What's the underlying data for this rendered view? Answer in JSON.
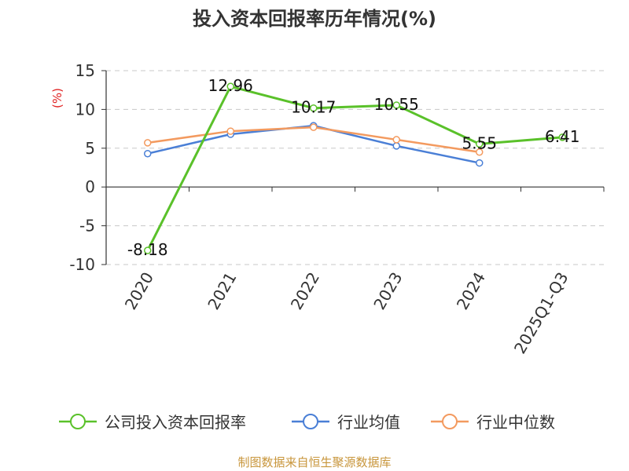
{
  "chart_data": {
    "type": "line",
    "title": "投入资本回报率历年情况(%)",
    "unit_label": "(%)",
    "categories": [
      "2020",
      "2021",
      "2022",
      "2023",
      "2024",
      "2025Q1-Q3"
    ],
    "ylim": [
      -10,
      15
    ],
    "yticks": [
      15,
      10,
      5,
      0,
      -5,
      -10
    ],
    "grid": true,
    "legend_position": "bottom",
    "series": [
      {
        "name": "公司投入资本回报率",
        "color": "#5ac12a",
        "values": [
          -8.18,
          12.96,
          10.17,
          10.55,
          5.55,
          6.41
        ],
        "labels": [
          "-8.18",
          "12.96",
          "10.17",
          "10.55",
          "5.55",
          "6.41"
        ]
      },
      {
        "name": "行业均值",
        "color": "#4a7fd6",
        "values": [
          4.3,
          6.8,
          7.9,
          5.3,
          3.1,
          null
        ]
      },
      {
        "name": "行业中位数",
        "color": "#f39a5f",
        "values": [
          5.7,
          7.2,
          7.7,
          6.1,
          4.5,
          null
        ]
      }
    ]
  },
  "source": "制图数据来自恒生聚源数据库"
}
